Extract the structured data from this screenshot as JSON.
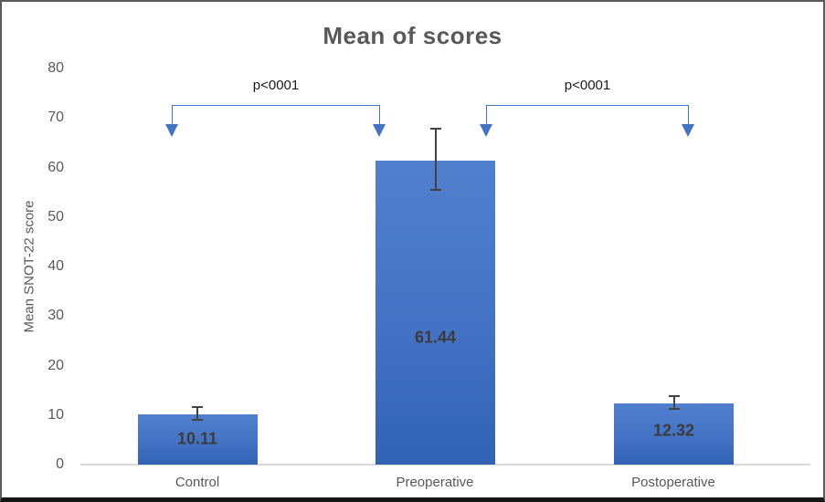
{
  "title": "Mean of scores",
  "chart_data": {
    "type": "bar",
    "title": "Mean of scores",
    "xlabel": "",
    "ylabel": "Mean SNOT-22 score",
    "categories": [
      "Control",
      "Preoperative",
      "Postoperative"
    ],
    "values": [
      10.11,
      61.44,
      12.32
    ],
    "value_labels": [
      "10.11",
      "61.44",
      "12.32"
    ],
    "errors": [
      1.3,
      6.2,
      1.3
    ],
    "ylim": [
      0,
      80
    ],
    "yticks": [
      0,
      10,
      20,
      30,
      40,
      50,
      60,
      70,
      80
    ],
    "grid": false,
    "legend": "none",
    "bar_color": "#4472C4",
    "annotations": [
      {
        "label": "p<0001",
        "between": [
          "Control",
          "Preoperative"
        ]
      },
      {
        "label": "p<0001",
        "between": [
          "Preoperative",
          "Postoperative"
        ]
      }
    ]
  }
}
